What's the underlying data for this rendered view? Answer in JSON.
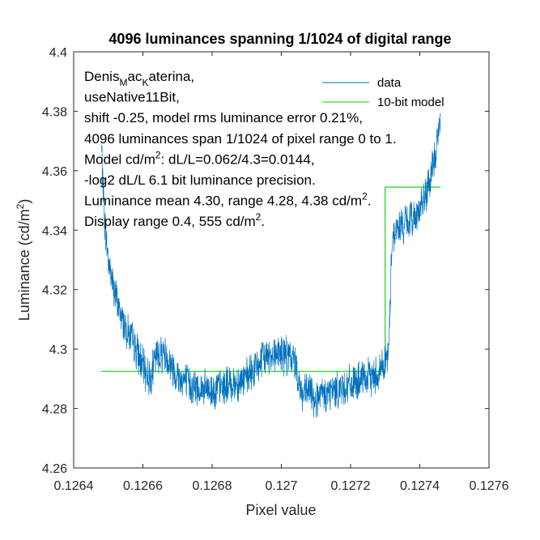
{
  "chart_data": {
    "type": "line",
    "title": "4096 luminances spanning 1/1024 of digital range",
    "xlabel": "Pixel value",
    "ylabel": "Luminance (cd/m2)",
    "xlim": [
      0.1264,
      0.1276
    ],
    "ylim": [
      4.26,
      4.4
    ],
    "xticks": [
      0.1264,
      0.1266,
      0.1268,
      0.127,
      0.1272,
      0.1274,
      0.1276
    ],
    "xtick_labels": [
      "0.1264",
      "0.1266",
      "0.1268",
      "0.127",
      "0.1272",
      "0.1274",
      "0.1276"
    ],
    "yticks": [
      4.26,
      4.28,
      4.3,
      4.32,
      4.34,
      4.36,
      4.38,
      4.4
    ],
    "ytick_labels": [
      "4.26",
      "4.28",
      "4.3",
      "4.32",
      "4.34",
      "4.36",
      "4.38",
      "4.4"
    ],
    "grid": false,
    "legend_position": "top-right",
    "series": [
      {
        "name": "data",
        "color": "#0072BD",
        "x": [
          0.12648,
          0.12649,
          0.1265,
          0.12652,
          0.12654,
          0.12656,
          0.12658,
          0.1266,
          0.12662,
          0.12664,
          0.12666,
          0.1267,
          0.12675,
          0.1268,
          0.12685,
          0.1269,
          0.12695,
          0.12698,
          0.12701,
          0.12704,
          0.12706,
          0.12708,
          0.1271,
          0.12715,
          0.1272,
          0.12725,
          0.12728,
          0.1273,
          0.12731,
          0.12732,
          0.12734,
          0.12737,
          0.1274,
          0.12742,
          0.12744,
          0.12746
        ],
        "y": [
          4.368,
          4.342,
          4.33,
          4.318,
          4.31,
          4.305,
          4.3,
          4.294,
          4.29,
          4.298,
          4.299,
          4.291,
          4.287,
          4.286,
          4.288,
          4.29,
          4.297,
          4.299,
          4.298,
          4.296,
          4.284,
          4.286,
          4.283,
          4.286,
          4.288,
          4.29,
          4.292,
          4.296,
          4.298,
          4.338,
          4.341,
          4.343,
          4.347,
          4.352,
          4.362,
          4.377
        ]
      },
      {
        "name": "10-bit model",
        "color": "#00D100",
        "x": [
          0.12648,
          0.1273,
          0.1273,
          0.12746
        ],
        "y": [
          4.2925,
          4.2925,
          4.3545,
          4.3545
        ]
      }
    ],
    "annotation_lines": [
      {
        "parts": [
          {
            "text": "Denis"
          },
          {
            "text": "M",
            "sub": true
          },
          {
            "text": "ac"
          },
          {
            "text": "K",
            "sub": true
          },
          {
            "text": "aterina,"
          }
        ]
      },
      {
        "parts": [
          {
            "text": "useNative11Bit,"
          }
        ]
      },
      {
        "parts": [
          {
            "text": "shift -0.25, model rms luminance error 0.21%,"
          }
        ]
      },
      {
        "parts": [
          {
            "text": "4096 luminances span 1/1024 of pixel range 0 to 1."
          }
        ]
      },
      {
        "parts": [
          {
            "text": "Model cd/m"
          },
          {
            "text": "2",
            "sup": true
          },
          {
            "text": ": dL/L=0.062/4.3=0.0144,"
          }
        ]
      },
      {
        "parts": [
          {
            "text": "-log2 dL/L 6.1 bit luminance precision."
          }
        ]
      },
      {
        "parts": [
          {
            "text": "Luminance mean 4.30, range 4.28, 4.38 cd/m"
          },
          {
            "text": "2",
            "sup": true
          },
          {
            "text": "."
          }
        ]
      },
      {
        "parts": [
          {
            "text": "Display range 0.4, 555 cd/m"
          },
          {
            "text": "2",
            "sup": true
          },
          {
            "text": "."
          }
        ]
      }
    ]
  }
}
